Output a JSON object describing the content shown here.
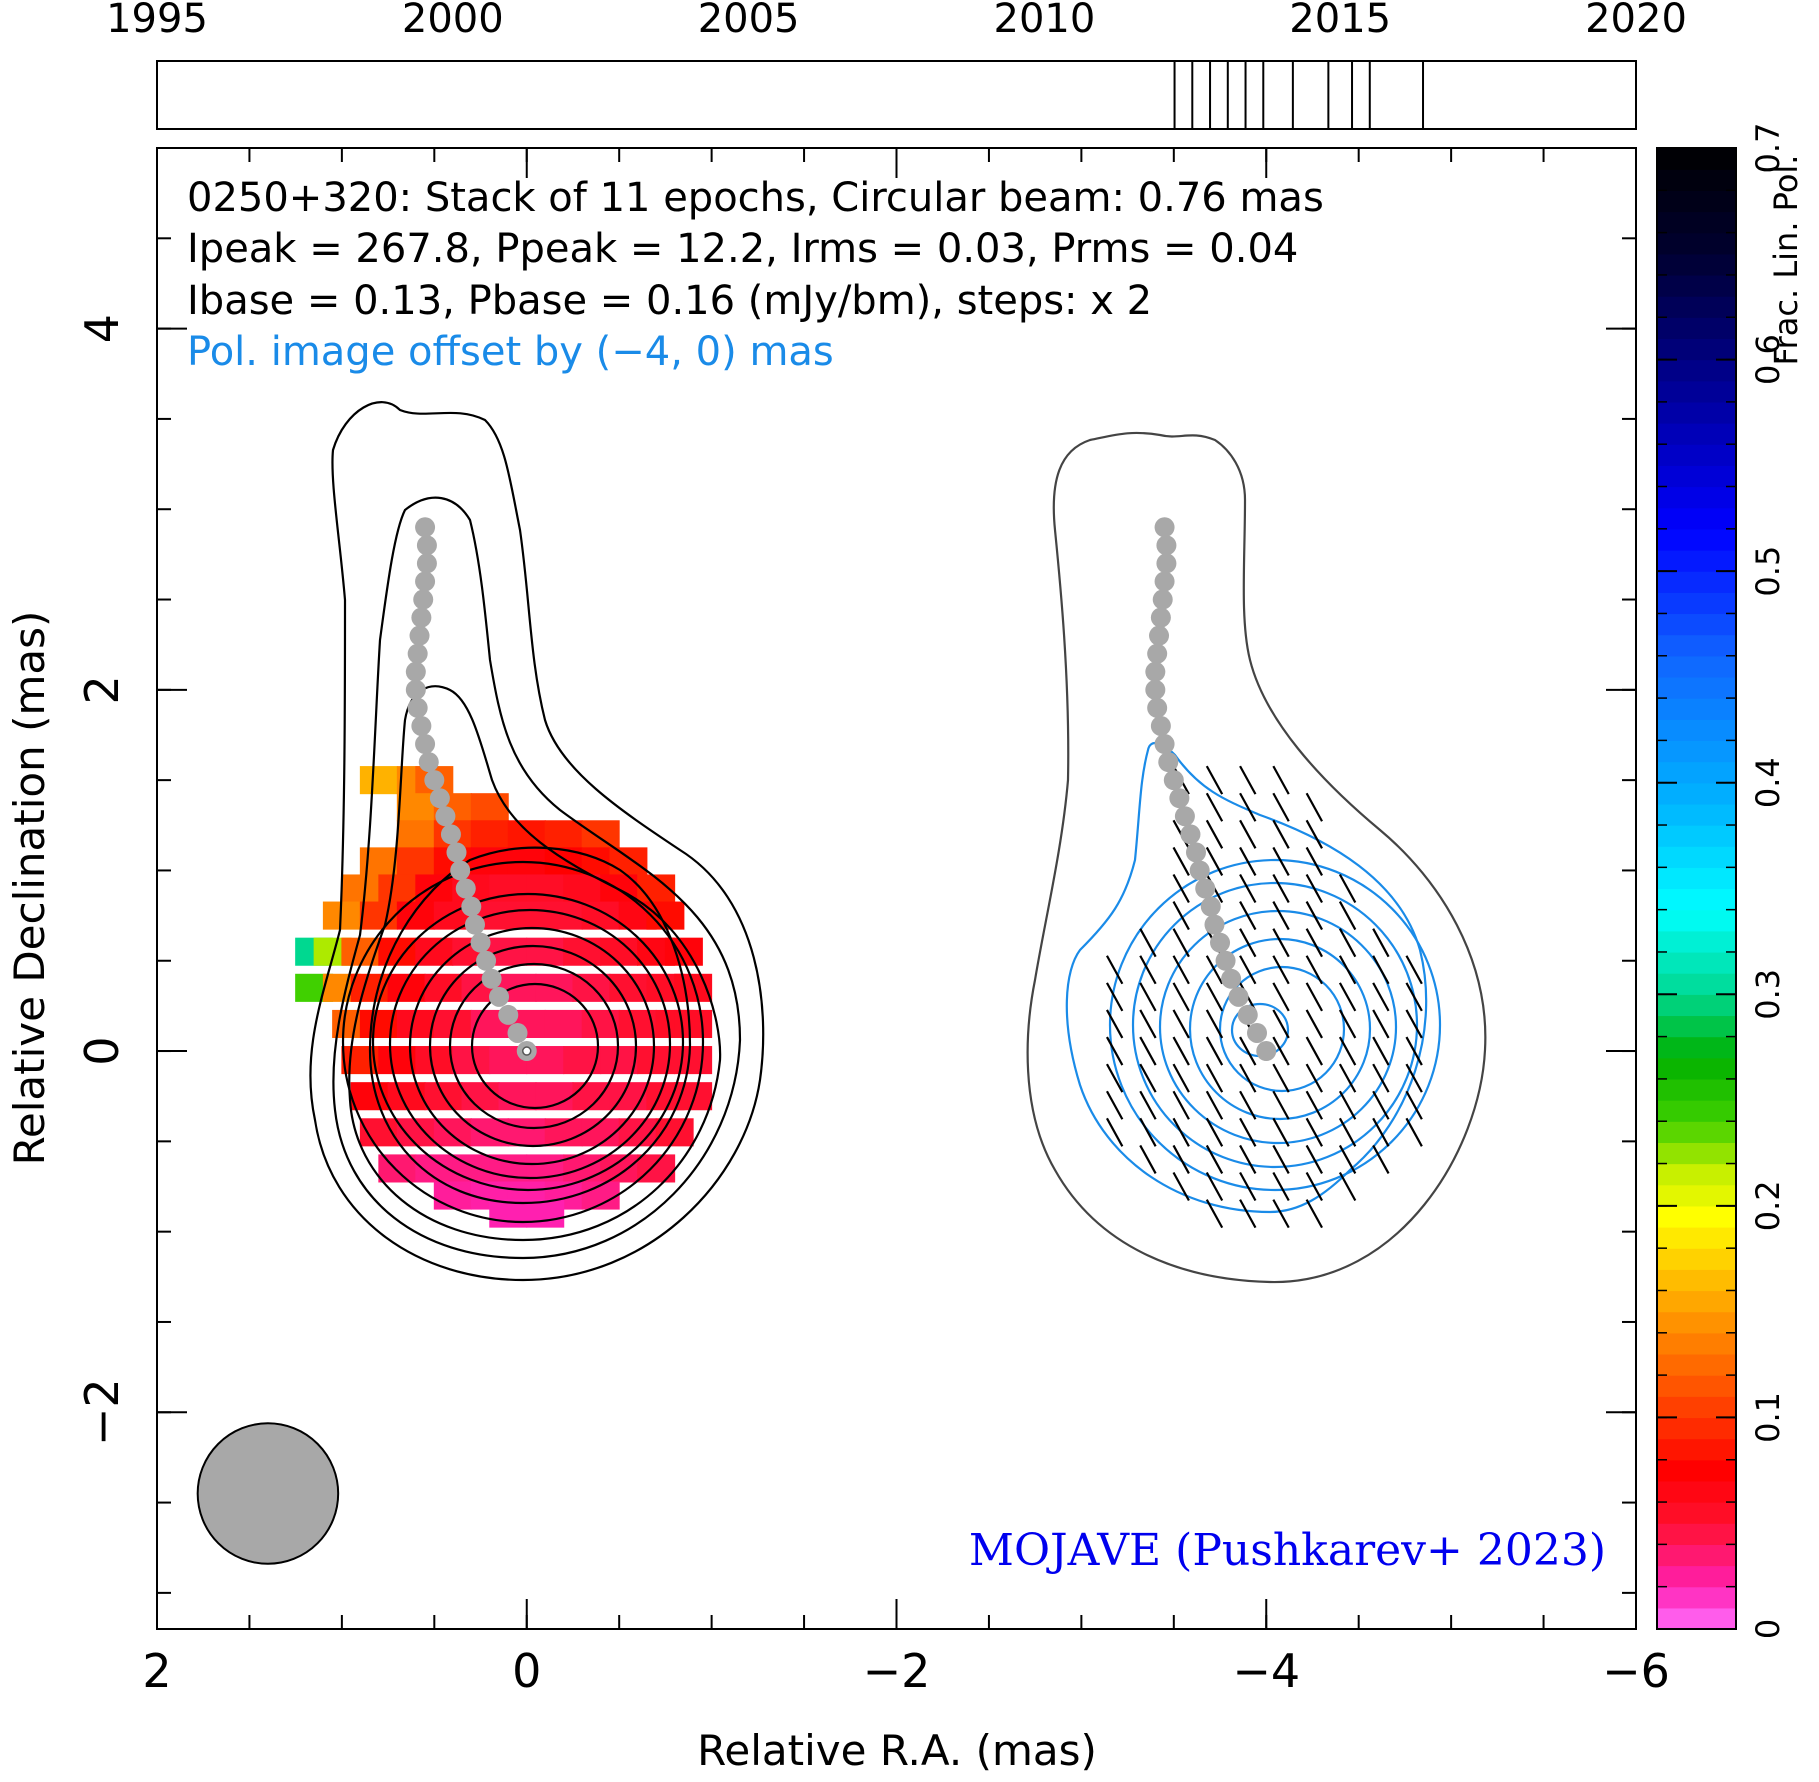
{
  "chart_data": {
    "type": "heatmap",
    "source": "0250+320",
    "header_lines": [
      "0250+320: Stack of 11 epochs, Circular beam: 0.76 mas",
      "Ipeak = 267.8, Ppeak = 12.2, Irms = 0.03, Prms = 0.04",
      "Ibase = 0.13, Pbase = 0.16 (mJy/bm), steps: x 2"
    ],
    "offset_note": "Pol. image offset by (−4, 0) mas",
    "credit": "MOJAVE (Pushkarev+ 2023)",
    "xlabel": "Relative R.A. (mas)",
    "ylabel": "Relative Declination (mas)",
    "xlim": [
      2.0,
      -6.0
    ],
    "ylim": [
      -3.2,
      5.0
    ],
    "x_ticks": [
      {
        "value": 2,
        "label": "2"
      },
      {
        "value": 0,
        "label": "0"
      },
      {
        "value": -2,
        "label": "−2"
      },
      {
        "value": -4,
        "label": "−4"
      },
      {
        "value": -6,
        "label": "−6"
      }
    ],
    "y_ticks": [
      {
        "value": -2,
        "label": "−2"
      },
      {
        "value": 0,
        "label": "0"
      },
      {
        "value": 2,
        "label": "2"
      },
      {
        "value": 4,
        "label": "4"
      }
    ],
    "timeline": {
      "range": [
        1995,
        2020
      ],
      "ticks": [
        {
          "value": 1995,
          "label": "1995"
        },
        {
          "value": 2000,
          "label": "2000"
        },
        {
          "value": 2005,
          "label": "2005"
        },
        {
          "value": 2010,
          "label": "2010"
        },
        {
          "value": 2015,
          "label": "2015"
        },
        {
          "value": 2020,
          "label": "2020"
        }
      ],
      "epochs": [
        2012.2,
        2012.5,
        2012.8,
        2013.1,
        2013.4,
        2013.7,
        2014.2,
        2014.8,
        2015.2,
        2015.5,
        2016.4
      ]
    },
    "colorbar": {
      "label": "Frac. Lin. Pol.",
      "range": [
        0,
        0.7
      ],
      "ticks": [
        {
          "value": 0,
          "label": "0"
        },
        {
          "value": 0.1,
          "label": "0.1"
        },
        {
          "value": 0.2,
          "label": "0.2"
        },
        {
          "value": 0.3,
          "label": "0.3"
        },
        {
          "value": 0.4,
          "label": "0.4"
        },
        {
          "value": 0.5,
          "label": "0.5"
        },
        {
          "value": 0.6,
          "label": "0.6"
        },
        {
          "value": 0.7,
          "label": "0.7"
        }
      ]
    },
    "beam": {
      "x": 1.4,
      "y": -2.45,
      "diameter_mas": 0.76
    },
    "ridge_line": [
      [
        0.0,
        0.0
      ],
      [
        0.05,
        0.1
      ],
      [
        0.1,
        0.2
      ],
      [
        0.15,
        0.3
      ],
      [
        0.19,
        0.4
      ],
      [
        0.22,
        0.5
      ],
      [
        0.25,
        0.6
      ],
      [
        0.28,
        0.7
      ],
      [
        0.3,
        0.8
      ],
      [
        0.33,
        0.9
      ],
      [
        0.36,
        1.0
      ],
      [
        0.38,
        1.1
      ],
      [
        0.41,
        1.2
      ],
      [
        0.44,
        1.3
      ],
      [
        0.47,
        1.4
      ],
      [
        0.5,
        1.5
      ],
      [
        0.53,
        1.6
      ],
      [
        0.55,
        1.7
      ],
      [
        0.57,
        1.8
      ],
      [
        0.59,
        1.9
      ],
      [
        0.6,
        2.0
      ],
      [
        0.6,
        2.1
      ],
      [
        0.59,
        2.2
      ],
      [
        0.58,
        2.3
      ],
      [
        0.57,
        2.4
      ],
      [
        0.56,
        2.5
      ],
      [
        0.55,
        2.6
      ],
      [
        0.54,
        2.7
      ],
      [
        0.54,
        2.8
      ],
      [
        0.55,
        2.9
      ]
    ],
    "pol_offset": [
      -4,
      0
    ],
    "fpol_pixels": [
      [
        0.8,
        1.5,
        0.16
      ],
      [
        0.6,
        1.5,
        0.14
      ],
      [
        0.5,
        1.5,
        0.12
      ],
      [
        0.6,
        1.35,
        0.14
      ],
      [
        0.4,
        1.35,
        0.12
      ],
      [
        0.2,
        1.35,
        0.11
      ],
      [
        0.6,
        1.2,
        0.13
      ],
      [
        0.4,
        1.2,
        0.1
      ],
      [
        0.2,
        1.2,
        0.09
      ],
      [
        0.0,
        1.2,
        0.085
      ],
      [
        -0.2,
        1.2,
        0.09
      ],
      [
        -0.4,
        1.2,
        0.1
      ],
      [
        0.8,
        1.05,
        0.13
      ],
      [
        0.6,
        1.05,
        0.1
      ],
      [
        0.4,
        1.05,
        0.08
      ],
      [
        0.2,
        1.05,
        0.07
      ],
      [
        0.0,
        1.05,
        0.07
      ],
      [
        -0.2,
        1.05,
        0.075
      ],
      [
        -0.4,
        1.05,
        0.08
      ],
      [
        -0.55,
        1.05,
        0.09
      ],
      [
        0.9,
        0.9,
        0.13
      ],
      [
        0.7,
        0.9,
        0.1
      ],
      [
        0.5,
        0.9,
        0.07
      ],
      [
        0.3,
        0.9,
        0.06
      ],
      [
        0.1,
        0.9,
        0.055
      ],
      [
        -0.1,
        0.9,
        0.055
      ],
      [
        -0.3,
        0.9,
        0.06
      ],
      [
        -0.5,
        0.9,
        0.07
      ],
      [
        -0.7,
        0.9,
        0.09
      ],
      [
        1.0,
        0.75,
        0.14
      ],
      [
        0.8,
        0.75,
        0.1
      ],
      [
        0.6,
        0.75,
        0.07
      ],
      [
        0.4,
        0.75,
        0.06
      ],
      [
        0.2,
        0.75,
        0.05
      ],
      [
        0.0,
        0.75,
        0.05
      ],
      [
        -0.2,
        0.75,
        0.05
      ],
      [
        -0.4,
        0.75,
        0.055
      ],
      [
        -0.6,
        0.75,
        0.065
      ],
      [
        -0.75,
        0.75,
        0.08
      ],
      [
        1.15,
        0.55,
        0.3
      ],
      [
        1.05,
        0.55,
        0.22
      ],
      [
        0.9,
        0.55,
        0.12
      ],
      [
        0.7,
        0.55,
        0.08
      ],
      [
        0.5,
        0.55,
        0.06
      ],
      [
        0.3,
        0.55,
        0.05
      ],
      [
        0.1,
        0.55,
        0.045
      ],
      [
        -0.1,
        0.55,
        0.045
      ],
      [
        -0.3,
        0.55,
        0.05
      ],
      [
        -0.5,
        0.55,
        0.055
      ],
      [
        -0.7,
        0.55,
        0.065
      ],
      [
        -0.85,
        0.55,
        0.07
      ],
      [
        1.15,
        0.35,
        0.24
      ],
      [
        1.0,
        0.35,
        0.14
      ],
      [
        0.85,
        0.35,
        0.09
      ],
      [
        0.65,
        0.35,
        0.07
      ],
      [
        0.45,
        0.35,
        0.055
      ],
      [
        0.25,
        0.35,
        0.045
      ],
      [
        0.05,
        0.35,
        0.04
      ],
      [
        -0.15,
        0.35,
        0.04
      ],
      [
        -0.35,
        0.35,
        0.045
      ],
      [
        -0.55,
        0.35,
        0.05
      ],
      [
        -0.75,
        0.35,
        0.055
      ],
      [
        -0.9,
        0.35,
        0.06
      ],
      [
        0.95,
        0.15,
        0.12
      ],
      [
        0.8,
        0.15,
        0.08
      ],
      [
        0.6,
        0.15,
        0.06
      ],
      [
        0.4,
        0.15,
        0.05
      ],
      [
        0.2,
        0.15,
        0.04
      ],
      [
        0.0,
        0.15,
        0.04
      ],
      [
        -0.2,
        0.15,
        0.04
      ],
      [
        -0.4,
        0.15,
        0.045
      ],
      [
        -0.6,
        0.15,
        0.05
      ],
      [
        -0.8,
        0.15,
        0.055
      ],
      [
        -0.9,
        0.15,
        0.055
      ],
      [
        0.9,
        -0.05,
        0.09
      ],
      [
        0.7,
        -0.05,
        0.07
      ],
      [
        0.5,
        -0.05,
        0.055
      ],
      [
        0.3,
        -0.05,
        0.045
      ],
      [
        0.1,
        -0.05,
        0.04
      ],
      [
        -0.1,
        -0.05,
        0.04
      ],
      [
        -0.3,
        -0.05,
        0.045
      ],
      [
        -0.5,
        -0.05,
        0.045
      ],
      [
        -0.7,
        -0.05,
        0.05
      ],
      [
        -0.9,
        -0.05,
        0.05
      ],
      [
        0.85,
        -0.25,
        0.07
      ],
      [
        0.65,
        -0.25,
        0.06
      ],
      [
        0.45,
        -0.25,
        0.05
      ],
      [
        0.25,
        -0.25,
        0.045
      ],
      [
        0.05,
        -0.25,
        0.04
      ],
      [
        -0.15,
        -0.25,
        0.04
      ],
      [
        -0.35,
        -0.25,
        0.045
      ],
      [
        -0.55,
        -0.25,
        0.045
      ],
      [
        -0.75,
        -0.25,
        0.05
      ],
      [
        -0.9,
        -0.25,
        0.05
      ],
      [
        0.8,
        -0.45,
        0.05
      ],
      [
        0.6,
        -0.45,
        0.045
      ],
      [
        0.4,
        -0.45,
        0.04
      ],
      [
        0.2,
        -0.45,
        0.035
      ],
      [
        0.0,
        -0.45,
        0.035
      ],
      [
        -0.2,
        -0.45,
        0.04
      ],
      [
        -0.4,
        -0.45,
        0.04
      ],
      [
        -0.6,
        -0.45,
        0.045
      ],
      [
        -0.8,
        -0.45,
        0.05
      ],
      [
        0.7,
        -0.65,
        0.035
      ],
      [
        0.5,
        -0.65,
        0.03
      ],
      [
        0.3,
        -0.65,
        0.03
      ],
      [
        0.1,
        -0.65,
        0.03
      ],
      [
        -0.1,
        -0.65,
        0.03
      ],
      [
        -0.3,
        -0.65,
        0.035
      ],
      [
        -0.5,
        -0.65,
        0.04
      ],
      [
        -0.7,
        -0.65,
        0.045
      ],
      [
        0.4,
        -0.8,
        0.025
      ],
      [
        0.2,
        -0.8,
        0.022
      ],
      [
        0.0,
        -0.8,
        0.022
      ],
      [
        -0.2,
        -0.8,
        0.025
      ],
      [
        -0.4,
        -0.8,
        0.03
      ],
      [
        0.1,
        -0.9,
        0.02
      ],
      [
        -0.1,
        -0.9,
        0.02
      ]
    ]
  },
  "colors": {
    "credit": "#0000ee",
    "offset_note": "#1a8be8",
    "pol_contour": "#1a8be8",
    "ridge": "#a8a8a8",
    "beam": "#a8a8a8"
  }
}
